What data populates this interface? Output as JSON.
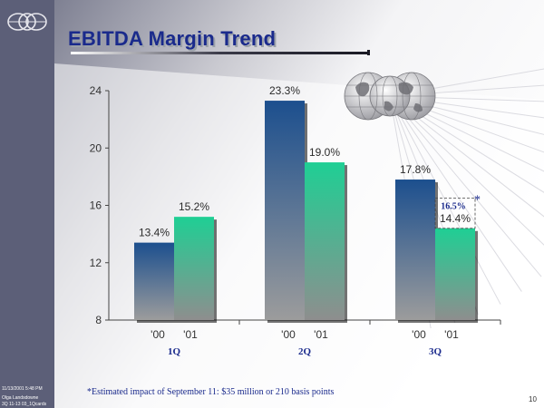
{
  "slide": {
    "title": "EBITDA Margin Trend",
    "footnote": "*Estimated impact of September 11: $35 million or 210 basis points",
    "page_number": "10",
    "meta_lines": [
      "11/13/2001 5:48 PM",
      "Olga Landsdowne",
      "3Q 11-13 03_1Qcards"
    ]
  },
  "colors": {
    "title": "#1a2a8c",
    "bar_2000_top": "#1c4f8e",
    "bar_2001_top": "#1fcf94",
    "bar_bottom": "#9c9c9c",
    "left_band": "#5c5f78"
  },
  "chart_data": {
    "type": "bar",
    "title": "EBITDA Margin Trend",
    "categories": [
      "1Q",
      "2Q",
      "3Q"
    ],
    "series": [
      {
        "name": "'00",
        "values": [
          13.4,
          23.3,
          17.8
        ],
        "labels": [
          "13.4%",
          "23.3%",
          "17.8%"
        ]
      },
      {
        "name": "'01",
        "values": [
          15.2,
          19.0,
          14.4
        ],
        "labels": [
          "15.2%",
          "19.0%",
          "14.4%"
        ]
      }
    ],
    "series_tick_labels": [
      "'00",
      "'01"
    ],
    "ylim": [
      8,
      24
    ],
    "yticks": [
      8,
      12,
      16,
      20,
      24
    ],
    "annotation": {
      "category": "3Q",
      "series": "'01",
      "value": 16.5,
      "label": "16.5%",
      "marker": "*"
    },
    "xlabel": "",
    "ylabel": ""
  }
}
